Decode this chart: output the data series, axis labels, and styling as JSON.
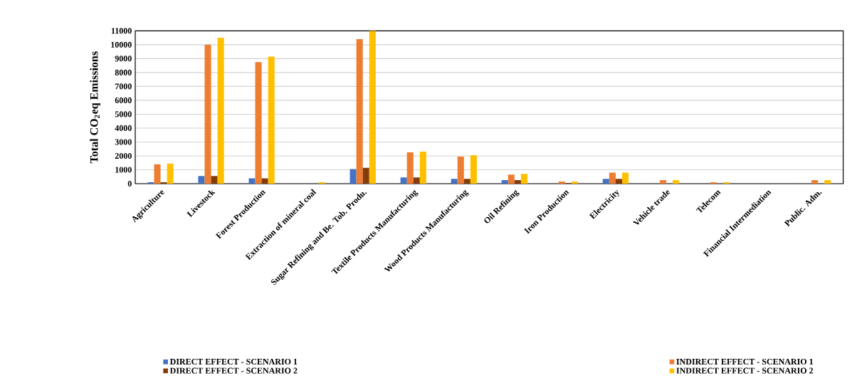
{
  "chart_data": {
    "type": "bar",
    "ylabel": "Total CO$_{2}$eq Emissions",
    "categories": [
      "Agriculture",
      "Livestock",
      "Forest Production",
      "Extraction of mineral coal",
      "Sugar Refining and Be. Tob. Produ.",
      "Textile Products Manufacturing",
      "Wood Products Manufacturing",
      "Oil Refining",
      "Iron Production",
      "Electricity",
      "Vehicle trade",
      "Telecom",
      "Financial Intermediation",
      "Public. Adm."
    ],
    "series": [
      {
        "name": "DIRECT EFFECT - SCENARIO 1",
        "color": "#4472c4",
        "values": [
          100,
          550,
          380,
          0,
          1050,
          450,
          350,
          250,
          0,
          350,
          0,
          0,
          0,
          0
        ]
      },
      {
        "name": "INDIRECT EFFECT - SCENARIO 1",
        "color": "#ed7d31",
        "values": [
          1400,
          10000,
          8750,
          0,
          10400,
          2250,
          1950,
          650,
          150,
          800,
          250,
          100,
          0,
          250
        ]
      },
      {
        "name": "DIRECT EFFECT - SCENARIO 2",
        "color": "#843c0c",
        "values": [
          100,
          550,
          380,
          0,
          1150,
          450,
          350,
          250,
          50,
          350,
          0,
          0,
          0,
          0
        ]
      },
      {
        "name": "INDIRECT EFFECT - SCENARIO 2",
        "color": "#ffc000",
        "values": [
          1450,
          10500,
          9150,
          100,
          11000,
          2300,
          2050,
          700,
          150,
          800,
          250,
          100,
          0,
          250
        ]
      }
    ],
    "ylim": [
      0,
      11000
    ],
    "yticks": [
      0,
      1000,
      2000,
      3000,
      4000,
      5000,
      6000,
      7000,
      8000,
      9000,
      10000,
      11000
    ],
    "grid": "y",
    "legend": "bottom"
  }
}
